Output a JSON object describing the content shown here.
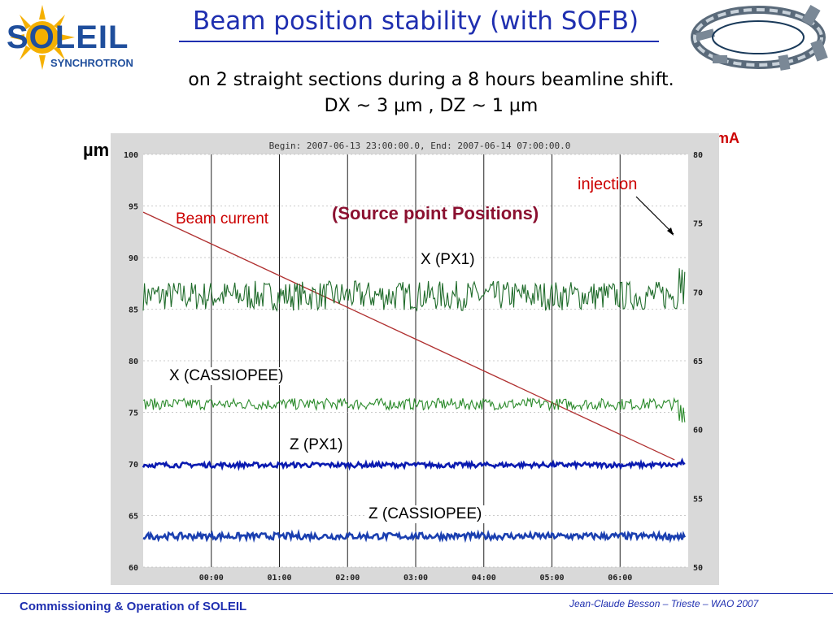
{
  "header": {
    "logo_word": "SOLEIL",
    "logo_sub": "SYNCHROTRON",
    "title": "Beam position stability (with SOFB)",
    "subtitle_line1": "on 2 straight sections during a 8 hours  beamline  shift.",
    "subtitle_line2": "DX ~ 3 µm  ,   DZ ~ 1 µm"
  },
  "colors": {
    "title": "#1f2fb0",
    "beam_current": "#b03030",
    "x_px1": "#1f6b2a",
    "x_cassiopee": "#2a8a2a",
    "z_px1": "#0a1ab0",
    "z_cassiopee": "#1a3fb0",
    "annotation_red": "#cc0000",
    "annotation_source": "#8b1030"
  },
  "chart_data": {
    "type": "line",
    "title": "Begin: 2007-06-13 23:00:00.0, End: 2007-06-14 07:00:00.0",
    "x": [
      "00:00",
      "01:00",
      "02:00",
      "03:00",
      "04:00",
      "05:00",
      "06:00"
    ],
    "xlim_hours": [
      -1,
      7
    ],
    "ylabel_left": "µm",
    "ylabel_right": "mA",
    "ylim_left": [
      60,
      100
    ],
    "ylim_right": [
      50,
      80
    ],
    "yticks_left": [
      60,
      65,
      70,
      75,
      80,
      85,
      90,
      95,
      100
    ],
    "yticks_right": [
      50,
      55,
      60,
      65,
      70,
      75,
      80
    ],
    "grid": true,
    "series": [
      {
        "name": "Beam current",
        "axis": "right",
        "start": [
          -1,
          75.8
        ],
        "end": [
          6.8,
          57.8
        ],
        "noise": 0
      },
      {
        "name": "X (PX1)",
        "axis": "left",
        "level": 86.3,
        "noise": 0.9,
        "injection_jump": 89.5
      },
      {
        "name": "X (CASSIOPEE)",
        "axis": "left",
        "level": 75.8,
        "noise": 0.35,
        "injection_jump": 74.0
      },
      {
        "name": "Z (PX1)",
        "axis": "left",
        "level": 69.9,
        "noise": 0.15,
        "injection_jump": 70.2
      },
      {
        "name": "Z (CASSIOPEE)",
        "axis": "left",
        "level": 63.0,
        "noise": 0.2,
        "injection_jump": 62.8
      }
    ],
    "annotations": {
      "injection": "injection",
      "source": "(Source point Positions)",
      "beam_current": "Beam current",
      "x_px1": "X (PX1)",
      "x_cassiopee": "X (CASSIOPEE)",
      "z_px1": "Z (PX1)",
      "z_cassiopee": "Z (CASSIOPEE)"
    }
  },
  "footer": {
    "left": "Commissioning & Operation of SOLEIL",
    "right": "Jean-Claude Besson – Trieste – WAO 2007"
  }
}
